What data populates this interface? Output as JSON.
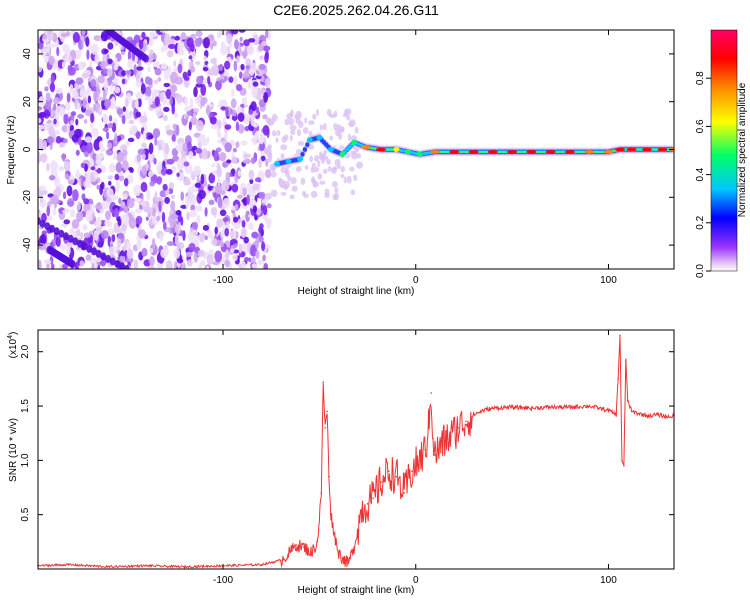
{
  "title": "C2E6.2025.262.04.26.G11",
  "chart_data": [
    {
      "type": "heatmap",
      "title": "C2E6.2025.262.04.26.G11",
      "xlabel": "Height of straight line (km)",
      "ylabel": "Frequency (Hz)",
      "xlim": [
        -196,
        134
      ],
      "ylim": [
        -50,
        50
      ],
      "xticks": [
        -100,
        0,
        100
      ],
      "xtick_labels": [
        "-100",
        "0",
        "100"
      ],
      "yticks": [
        -40,
        -20,
        0,
        20,
        40
      ],
      "ytick_labels": [
        "-40",
        "-20",
        "0",
        "20",
        "40"
      ],
      "grid": false,
      "noise_region_x": [
        -196,
        -76
      ],
      "ridge": [
        {
          "x": -72,
          "y": -6,
          "amp": 0.35
        },
        {
          "x": -66,
          "y": -5,
          "amp": 0.4
        },
        {
          "x": -60,
          "y": -4,
          "amp": 0.4
        },
        {
          "x": -55,
          "y": 4,
          "amp": 0.45
        },
        {
          "x": -50,
          "y": 5,
          "amp": 0.4
        },
        {
          "x": -44,
          "y": 0,
          "amp": 0.45
        },
        {
          "x": -38,
          "y": -2,
          "amp": 0.5
        },
        {
          "x": -32,
          "y": 3,
          "amp": 0.5
        },
        {
          "x": -26,
          "y": 1,
          "amp": 0.8
        },
        {
          "x": -18,
          "y": 0,
          "amp": 0.9
        },
        {
          "x": -10,
          "y": 0,
          "amp": 0.7
        },
        {
          "x": -4,
          "y": -1,
          "amp": 0.5
        },
        {
          "x": 2,
          "y": -2,
          "amp": 0.5
        },
        {
          "x": 10,
          "y": -1,
          "amp": 0.8
        },
        {
          "x": 20,
          "y": -1,
          "amp": 0.95
        },
        {
          "x": 30,
          "y": -1,
          "amp": 0.95
        },
        {
          "x": 40,
          "y": -1,
          "amp": 0.95
        },
        {
          "x": 50,
          "y": -1,
          "amp": 0.95
        },
        {
          "x": 60,
          "y": -1,
          "amp": 0.95
        },
        {
          "x": 70,
          "y": -1,
          "amp": 0.95
        },
        {
          "x": 80,
          "y": -1,
          "amp": 0.9
        },
        {
          "x": 90,
          "y": -1,
          "amp": 0.85
        },
        {
          "x": 100,
          "y": -1,
          "amp": 0.85
        },
        {
          "x": 106,
          "y": 0,
          "amp": 0.9
        },
        {
          "x": 112,
          "y": 0,
          "amp": 0.9
        },
        {
          "x": 120,
          "y": 0,
          "amp": 0.9
        },
        {
          "x": 128,
          "y": 0,
          "amp": 0.9
        },
        {
          "x": 134,
          "y": 0,
          "amp": 0.85
        }
      ],
      "colorbar": {
        "label": "Normalized spectral amplitude",
        "range": [
          0,
          1
        ],
        "ticks": [
          0.0,
          0.2,
          0.4,
          0.6,
          0.8
        ],
        "tick_labels": [
          "0.0",
          "0.2",
          "0.4",
          "0.6",
          "0.8"
        ],
        "colors": [
          "#ffffff",
          "#e6c8f5",
          "#9933ff",
          "#0000ff",
          "#00c8ff",
          "#00ff66",
          "#ffff00",
          "#ff8800",
          "#ff0000",
          "#ff0066"
        ]
      }
    },
    {
      "type": "line",
      "xlabel": "Height of straight line (km)",
      "ylabel": "SNR (10 * v/v)",
      "multiplier_label": "(x10",
      "multiplier_exponent": "4",
      "multiplier_close": ")",
      "xlim": [
        -196,
        134
      ],
      "ylim": [
        0,
        2.2
      ],
      "xticks": [
        -100,
        0,
        100
      ],
      "xtick_labels": [
        "-100",
        "0",
        "100"
      ],
      "yticks": [
        0.5,
        1.0,
        1.5,
        2.0
      ],
      "ytick_labels": [
        "0.5",
        "1.0",
        "1.5",
        "2.0"
      ],
      "grid": false,
      "series": [
        {
          "name": "SNR",
          "color": "#ee3333",
          "x": [
            -196,
            -180,
            -160,
            -140,
            -120,
            -100,
            -80,
            -70,
            -66,
            -62,
            -58,
            -54,
            -51,
            -49,
            -48,
            -47,
            -46,
            -45,
            -44,
            -42,
            -40,
            -38,
            -35,
            -32,
            -28,
            -25,
            -22,
            -18,
            -14,
            -10,
            -6,
            -2,
            2,
            5,
            7,
            8,
            9,
            10,
            12,
            15,
            18,
            22,
            26,
            30,
            35,
            40,
            50,
            60,
            70,
            80,
            90,
            95,
            100,
            104,
            105,
            106,
            107,
            108,
            109,
            110,
            112,
            116,
            120,
            126,
            130,
            134
          ],
          "y": [
            0.03,
            0.04,
            0.02,
            0.03,
            0.02,
            0.03,
            0.04,
            0.08,
            0.14,
            0.22,
            0.2,
            0.15,
            0.25,
            0.7,
            1.72,
            1.3,
            1.45,
            0.85,
            0.5,
            0.3,
            0.15,
            0.1,
            0.05,
            0.2,
            0.55,
            0.6,
            0.65,
            0.8,
            0.9,
            0.85,
            0.7,
            0.9,
            1.0,
            1.1,
            1.35,
            1.62,
            1.2,
            1.05,
            1.1,
            1.18,
            1.22,
            1.3,
            1.36,
            1.42,
            1.46,
            1.48,
            1.49,
            1.48,
            1.49,
            1.49,
            1.5,
            1.48,
            1.46,
            1.42,
            1.75,
            2.15,
            1.0,
            0.95,
            1.92,
            1.55,
            1.45,
            1.43,
            1.41,
            1.42,
            1.4,
            1.41
          ]
        }
      ]
    }
  ]
}
